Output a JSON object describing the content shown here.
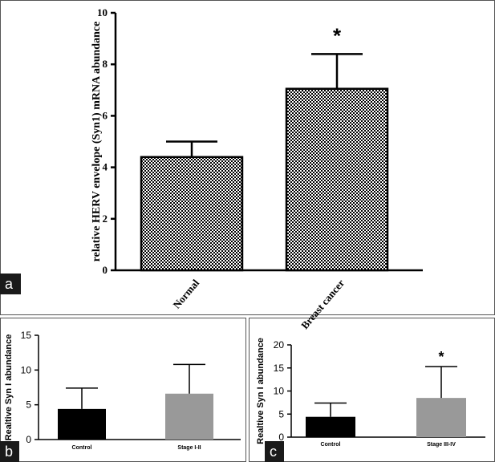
{
  "chart_data": [
    {
      "panel": "a",
      "type": "bar",
      "ylabel": "relative HERV envelope (Syn1) mRNA abundance",
      "xlabel": "",
      "ylim": [
        0,
        10
      ],
      "yticks": [
        "0",
        "2",
        "4",
        "6",
        "8",
        "10"
      ],
      "categories": [
        "Normal",
        "Breast cancer"
      ],
      "values": [
        4.4,
        7.05
      ],
      "errors": [
        0.6,
        1.35
      ],
      "annotations": [
        "",
        "*"
      ],
      "bar_fill": "checkered",
      "grid": false
    },
    {
      "panel": "b",
      "type": "bar",
      "ylabel": "Realtive Syn I abundance",
      "xlabel": "",
      "ylim": [
        0,
        15
      ],
      "yticks": [
        "0",
        "5",
        "10",
        "15"
      ],
      "categories": [
        "Control",
        "Stage I-II"
      ],
      "values": [
        4.4,
        6.6
      ],
      "errors": [
        3.0,
        4.2
      ],
      "annotations": [
        "",
        ""
      ],
      "colors": [
        "#000000",
        "#999999"
      ],
      "grid": false
    },
    {
      "panel": "c",
      "type": "bar",
      "ylabel": "Realtive Syn I abundance",
      "xlabel": "",
      "ylim": [
        0,
        20
      ],
      "yticks": [
        "0",
        "5",
        "10",
        "15",
        "20"
      ],
      "categories": [
        "Control",
        "Stage III-IV"
      ],
      "values": [
        4.4,
        8.5
      ],
      "errors": [
        3.0,
        6.8
      ],
      "annotations": [
        "",
        "*"
      ],
      "colors": [
        "#000000",
        "#999999"
      ],
      "grid": false
    }
  ],
  "panel_tags": {
    "a": "a",
    "b": "b",
    "c": "c"
  }
}
